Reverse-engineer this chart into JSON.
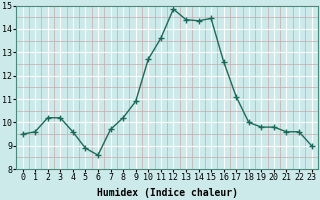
{
  "x": [
    0,
    1,
    2,
    3,
    4,
    5,
    6,
    7,
    8,
    9,
    10,
    11,
    12,
    13,
    14,
    15,
    16,
    17,
    18,
    19,
    20,
    21,
    22,
    23
  ],
  "y": [
    9.5,
    9.6,
    10.2,
    10.2,
    9.6,
    8.9,
    8.6,
    9.7,
    10.2,
    10.9,
    12.7,
    13.6,
    14.85,
    14.4,
    14.35,
    14.45,
    12.6,
    11.1,
    10.0,
    9.8,
    9.8,
    9.6,
    9.6,
    9.0
  ],
  "line_color": "#1a6b5a",
  "marker": "+",
  "marker_size": 4,
  "bg_color": "#cceaea",
  "xlabel": "Humidex (Indice chaleur)",
  "ylim": [
    8,
    15
  ],
  "xlim": [
    -0.5,
    23.5
  ],
  "yticks": [
    8,
    9,
    10,
    11,
    12,
    13,
    14,
    15
  ],
  "xticks": [
    0,
    1,
    2,
    3,
    4,
    5,
    6,
    7,
    8,
    9,
    10,
    11,
    12,
    13,
    14,
    15,
    16,
    17,
    18,
    19,
    20,
    21,
    22,
    23
  ],
  "tick_fontsize": 6,
  "xlabel_fontsize": 7,
  "minor_grid_color": "#c8a8a8",
  "major_grid_color": "#ffffff",
  "line_width": 1.0
}
